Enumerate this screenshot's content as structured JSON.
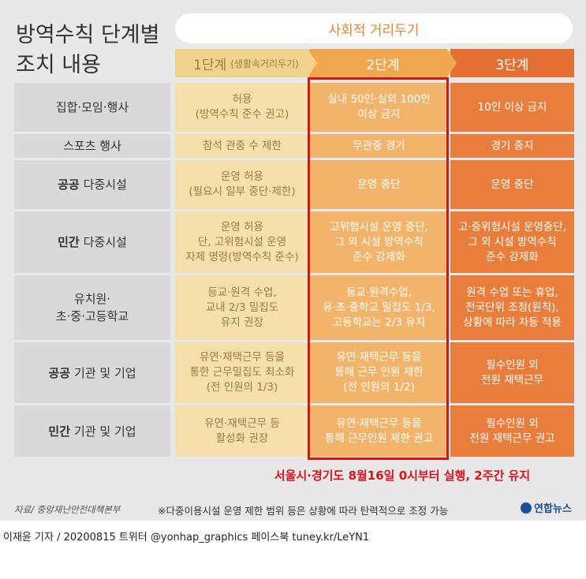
{
  "title": [
    "방역수칙 단계별",
    "조치 내용"
  ],
  "banner": "사회적 거리두기",
  "stages": [
    {
      "name": "1단계",
      "sub": "(생활속거리두기)"
    },
    {
      "name": "2단계"
    },
    {
      "name": "3단계"
    }
  ],
  "rows": [
    {
      "label": [
        "집합·모임·행사"
      ],
      "cells": [
        [
          "허용",
          "(방역수칙 준수 권고)"
        ],
        [
          "실내 50인·실외 100인",
          "이상 금지"
        ],
        [
          "10인 이상 금지"
        ]
      ]
    },
    {
      "label": [
        "스포츠 행사"
      ],
      "cells": [
        [
          "참석 관중 수 제한"
        ],
        [
          "무관중 경기"
        ],
        [
          "경기 중지"
        ]
      ]
    },
    {
      "label_bold": "공공",
      "label": [
        "다중시설"
      ],
      "cells": [
        [
          "운영 허용",
          "(필요시 일부 중단·제한)"
        ],
        [
          "운영 중단"
        ],
        [
          "운영 중단"
        ]
      ]
    },
    {
      "label_bold": "민간",
      "label": [
        "다중시설"
      ],
      "cells": [
        [
          "운영 허용",
          "단, 고위험시설 운영",
          "자제 명령(방역수칙 준수)"
        ],
        [
          "고위험시설 운영 중단,",
          "그 외 시설 방역수칙",
          "준수 강제화"
        ],
        [
          "고·중위험시설 운영중단,",
          "그 외 시설 방역수칙",
          "준수 강제화"
        ]
      ]
    },
    {
      "label": [
        "유치원·",
        "초·중·고등학교"
      ],
      "cells": [
        [
          "등교·원격 수업,",
          "교내 2/3 밀집도",
          "유지 권장"
        ],
        [
          "등교·원격수업,",
          "유·초·중학교 밀집도 1/3,",
          "고등학교는 2/3 유지"
        ],
        [
          "원격 수업 또는 휴업,",
          "전국단위 조정(원칙),",
          "상황에 따라 차등 적용"
        ]
      ]
    },
    {
      "label_bold": "공공",
      "label": [
        "기관 및 기업"
      ],
      "cells": [
        [
          "유연·재택근무 등을",
          "통한 근무밀집도 최소화",
          "(전 인원의 1/3)"
        ],
        [
          "유연·재택근무 등을",
          "통해 근무 인원 제한",
          "(전 인원의 1/2)"
        ],
        [
          "필수인원 외",
          "전원 재택근무"
        ]
      ]
    },
    {
      "label_bold": "민간",
      "label": [
        "기관 및 기업"
      ],
      "cells": [
        [
          "유연·재택근무 등",
          "활성화 권장"
        ],
        [
          "유연·재택근무 등을",
          "통해 근무인원 제한 권고"
        ],
        [
          "필수인원 외",
          "전원 재택근무 권고"
        ]
      ]
    }
  ],
  "highlight_note": "서울시·경기도 8월16일 0시부터 실행, 2주간 유지",
  "source": "자료/ 중앙재난안전대책본부",
  "footnote": "※다중이용시설 운영 제한 범위 등은 상황에 따라 탄력적으로 조정 가능",
  "logo": "연합뉴스",
  "credit": "이재윤 기자 / 20200815  트위터 @yonhap_graphics  페이스북 tuney.kr/LeYN1"
}
